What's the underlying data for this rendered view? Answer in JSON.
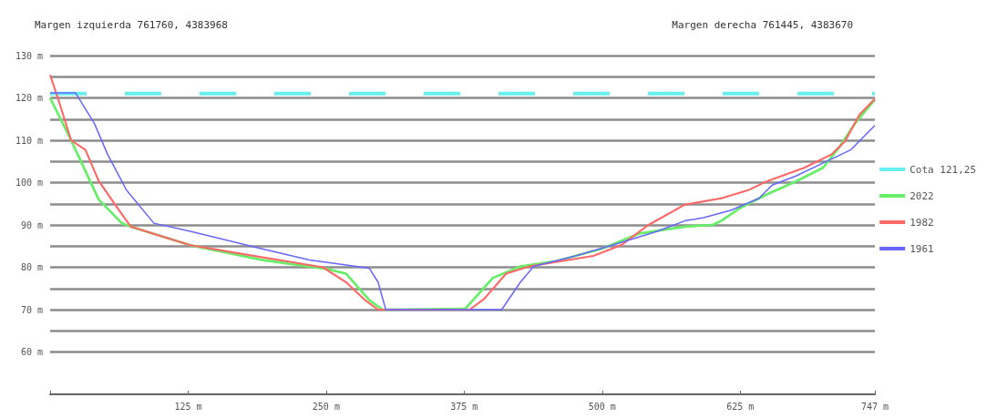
{
  "chart_data": {
    "type": "line",
    "annotations": [
      "Margen izquierda 761760, 4383968",
      "Margen derecha 761445, 4383670"
    ],
    "xlim": [
      0,
      747
    ],
    "xticks": [
      {
        "value": 0,
        "label": null
      },
      {
        "value": 125,
        "label": "125 m"
      },
      {
        "value": 250,
        "label": "250 m"
      },
      {
        "value": 375,
        "label": "375 m"
      },
      {
        "value": 500,
        "label": "500 m"
      },
      {
        "value": 625,
        "label": "625 m"
      },
      {
        "value": 747,
        "label": "747 m"
      }
    ],
    "ylim": [
      50,
      130
    ],
    "yticks": [
      {
        "value": 60,
        "label": "60 m"
      },
      {
        "value": 65,
        "label": null
      },
      {
        "value": 70,
        "label": "70 m"
      },
      {
        "value": 75,
        "label": null
      },
      {
        "value": 80,
        "label": "80 m"
      },
      {
        "value": 85,
        "label": null
      },
      {
        "value": 90,
        "label": "90 m"
      },
      {
        "value": 95,
        "label": null
      },
      {
        "value": 100,
        "label": "100 m"
      },
      {
        "value": 105,
        "label": null
      },
      {
        "value": 110,
        "label": "110 m"
      },
      {
        "value": 115,
        "label": null
      },
      {
        "value": 120,
        "label": "120 m"
      },
      {
        "value": 125,
        "label": null
      },
      {
        "value": 130,
        "label": "130 m"
      }
    ],
    "grid": "y",
    "legend": "right",
    "marker": "none",
    "series": [
      {
        "name": "Cota 121,25",
        "color": "#66f0f0",
        "line_style": "dashed",
        "x": [
          0,
          747
        ],
        "values": [
          121,
          121
        ]
      },
      {
        "name": "2022",
        "color": "#66ee66",
        "x": [
          0,
          19,
          44,
          65,
          73,
          127,
          193,
          251,
          268,
          289,
          301,
          376,
          401,
          426,
          459,
          500,
          534,
          575,
          600,
          608,
          625,
          650,
          675,
          700,
          716,
          729,
          747
        ],
        "values": [
          120,
          110,
          96,
          90.4,
          89.6,
          85.2,
          81.7,
          79.6,
          78.5,
          72.3,
          70,
          70.2,
          77.5,
          80.2,
          81.5,
          84.4,
          88,
          89.6,
          90,
          91,
          94,
          97.3,
          100.2,
          103.5,
          108.8,
          114,
          119.6
        ]
      },
      {
        "name": "1982",
        "color": "#ff6666",
        "x": [
          0,
          7,
          19,
          32,
          44,
          61,
          73,
          127,
          247,
          268,
          285,
          297,
          380,
          393,
          413,
          434,
          492,
          517,
          542,
          575,
          608,
          633,
          650,
          683,
          708,
          720,
          733,
          747
        ],
        "values": [
          125.4,
          120,
          110,
          107.7,
          100.4,
          94,
          89.6,
          85.2,
          80,
          76.5,
          72.3,
          70,
          70,
          72.5,
          78.5,
          80.2,
          82.7,
          85.2,
          90,
          94.8,
          96.3,
          98.3,
          100.4,
          103.5,
          106.7,
          109.8,
          116,
          119.8
        ]
      },
      {
        "name": "1961",
        "color": "#6666ff",
        "x": [
          0,
          23,
          40,
          52,
          69,
          94,
          127,
          185,
          235,
          289,
          297,
          304,
          409,
          426,
          438,
          476,
          509,
          550,
          575,
          592,
          617,
          642,
          654,
          675,
          700,
          725,
          747
        ],
        "values": [
          121.2,
          121.2,
          114,
          106.7,
          98.3,
          90.4,
          88.5,
          84.8,
          81.7,
          79.8,
          76.5,
          70,
          70,
          76.5,
          80.2,
          82.7,
          85.2,
          88.5,
          91,
          91.7,
          93.5,
          96.3,
          99.4,
          101.5,
          104.6,
          107.7,
          113.5
        ]
      }
    ]
  }
}
